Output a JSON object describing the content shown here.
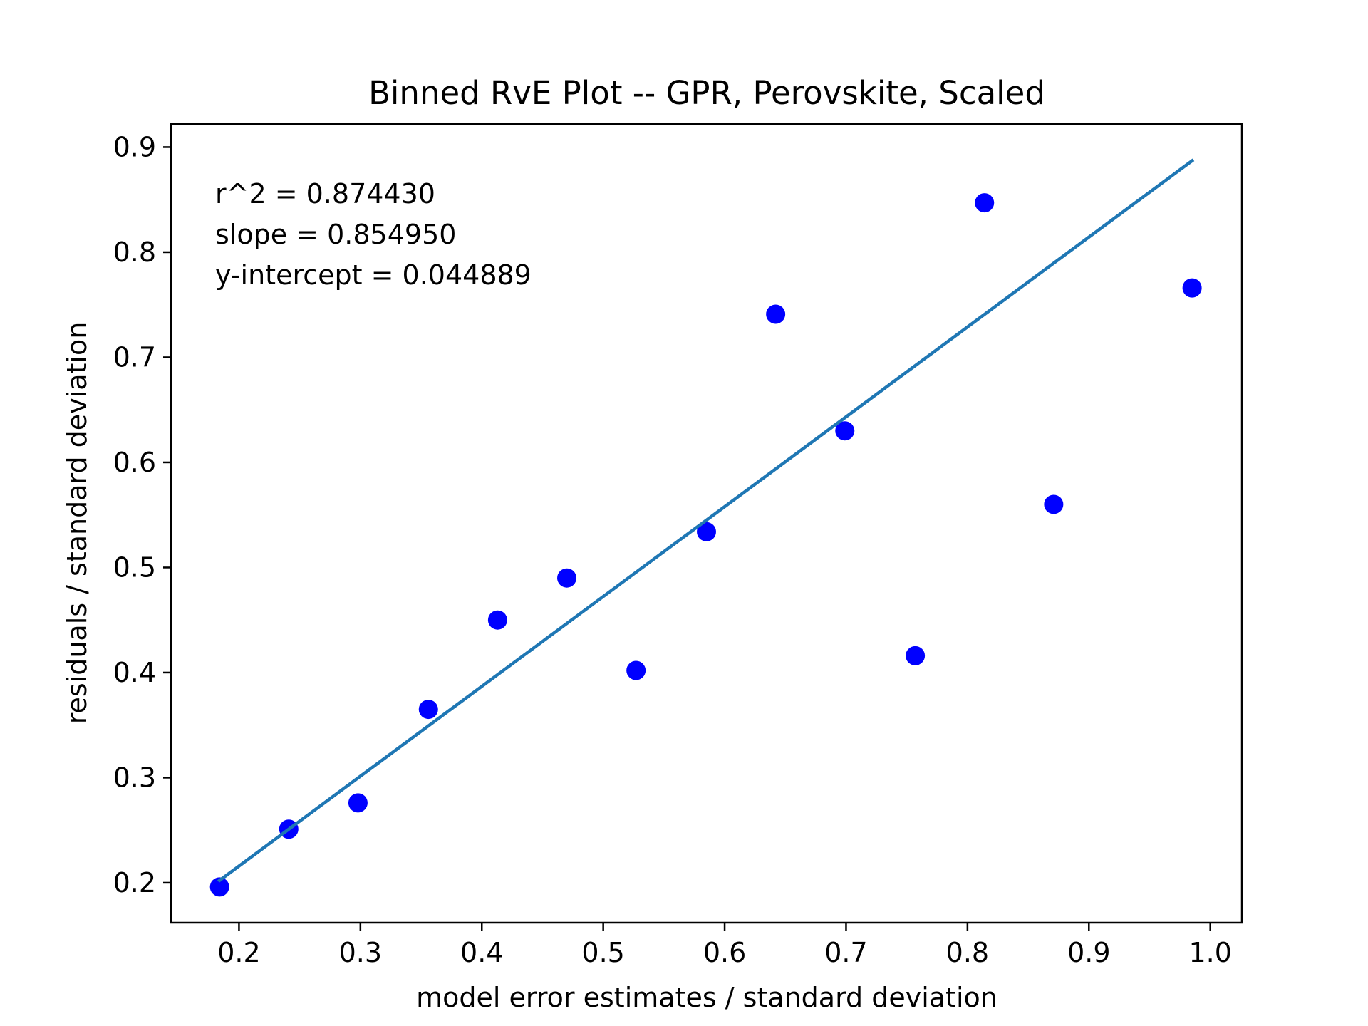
{
  "chart_data": {
    "type": "scatter",
    "title": "Binned RvE Plot -- GPR, Perovskite, Scaled",
    "xlabel": "model error estimates / standard deviation",
    "ylabel": "residuals / standard deviation",
    "xlim": [
      0.144,
      1.026
    ],
    "ylim": [
      0.162,
      0.922
    ],
    "xticks": [
      0.2,
      0.3,
      0.4,
      0.5,
      0.6,
      0.7,
      0.8,
      0.9,
      1.0
    ],
    "xtick_labels": [
      "0.2",
      "0.3",
      "0.4",
      "0.5",
      "0.6",
      "0.7",
      "0.8",
      "0.9",
      "1.0"
    ],
    "yticks": [
      0.2,
      0.3,
      0.4,
      0.5,
      0.6,
      0.7,
      0.8,
      0.9
    ],
    "ytick_labels": [
      "0.2",
      "0.3",
      "0.4",
      "0.5",
      "0.6",
      "0.7",
      "0.8",
      "0.9"
    ],
    "grid": false,
    "points": [
      {
        "x": 0.184,
        "y": 0.196
      },
      {
        "x": 0.241,
        "y": 0.251
      },
      {
        "x": 0.298,
        "y": 0.276
      },
      {
        "x": 0.356,
        "y": 0.365
      },
      {
        "x": 0.413,
        "y": 0.45
      },
      {
        "x": 0.47,
        "y": 0.49
      },
      {
        "x": 0.527,
        "y": 0.402
      },
      {
        "x": 0.585,
        "y": 0.534
      },
      {
        "x": 0.642,
        "y": 0.741
      },
      {
        "x": 0.699,
        "y": 0.63
      },
      {
        "x": 0.757,
        "y": 0.416
      },
      {
        "x": 0.814,
        "y": 0.847
      },
      {
        "x": 0.871,
        "y": 0.56
      },
      {
        "x": 0.985,
        "y": 0.766
      }
    ],
    "fit_line": {
      "slope": 0.85495,
      "intercept": 0.044889,
      "x_range": [
        0.184,
        0.985
      ]
    },
    "annotations": [
      "r^2 = 0.874430",
      "slope = 0.854950",
      "y-intercept = 0.044889"
    ],
    "colors": {
      "points": "#0000ff",
      "fit_line": "#1f77b4",
      "axes": "#000000"
    }
  }
}
